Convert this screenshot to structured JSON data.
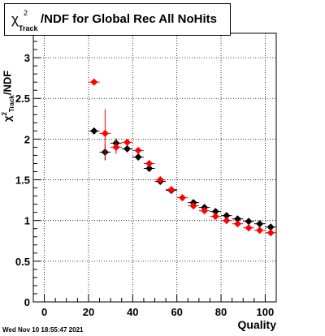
{
  "chart_data": {
    "type": "scatter",
    "title": "χ²_Track/NDF for Global Rec All NoHits",
    "title_parts": {
      "chi": "χ",
      "sup": "2",
      "sub": "Track",
      "rest": "/NDF for Global Rec All NoHits"
    },
    "xlabel": "Quality",
    "ylabel": "χ²_Track/NDF",
    "ylabel_text": "/NDF",
    "ylabel_sub": "Track",
    "ylabel_sup": "2",
    "ylabel_chi": "χ",
    "xlim": [
      -5,
      105
    ],
    "ylim": [
      0,
      3.3
    ],
    "xticks": [
      0,
      20,
      40,
      60,
      80,
      100
    ],
    "yticks": [
      0,
      0.5,
      1,
      1.5,
      2,
      2.5,
      3
    ],
    "grid": true,
    "series": [
      {
        "color": "#000000",
        "points": [
          {
            "x": 22.5,
            "y": 2.1,
            "yerr": 0.02
          },
          {
            "x": 27.5,
            "y": 1.84,
            "yerr": 0.1
          },
          {
            "x": 32.5,
            "y": 1.95,
            "yerr": 0.06
          },
          {
            "x": 37.5,
            "y": 1.88,
            "yerr": 0.03
          },
          {
            "x": 42.5,
            "y": 1.78,
            "yerr": 0.02
          },
          {
            "x": 47.5,
            "y": 1.64,
            "yerr": 0.02
          },
          {
            "x": 52.5,
            "y": 1.48,
            "yerr": 0.02
          },
          {
            "x": 57.5,
            "y": 1.37,
            "yerr": 0.015
          },
          {
            "x": 67.5,
            "y": 1.22,
            "yerr": 0.01
          },
          {
            "x": 72.5,
            "y": 1.16,
            "yerr": 0.01
          },
          {
            "x": 77.5,
            "y": 1.11,
            "yerr": 0.01
          },
          {
            "x": 82.5,
            "y": 1.06,
            "yerr": 0.01
          },
          {
            "x": 87.5,
            "y": 1.02,
            "yerr": 0.01
          },
          {
            "x": 92.5,
            "y": 0.99,
            "yerr": 0.01
          },
          {
            "x": 97.5,
            "y": 0.96,
            "yerr": 0.01
          },
          {
            "x": 102.5,
            "y": 0.92,
            "yerr": 0.01
          }
        ]
      },
      {
        "color": "#ff0000",
        "points": [
          {
            "x": 22.5,
            "y": 2.7,
            "yerr": 0.02
          },
          {
            "x": 27.5,
            "y": 2.07,
            "yerr": 0.3
          },
          {
            "x": 32.5,
            "y": 1.9,
            "yerr": 0.08
          },
          {
            "x": 37.5,
            "y": 1.96,
            "yerr": 0.03
          },
          {
            "x": 42.5,
            "y": 1.86,
            "yerr": 0.02
          },
          {
            "x": 47.5,
            "y": 1.7,
            "yerr": 0.02
          },
          {
            "x": 52.5,
            "y": 1.5,
            "yerr": 0.02
          },
          {
            "x": 57.5,
            "y": 1.38,
            "yerr": 0.015
          },
          {
            "x": 62.5,
            "y": 1.28,
            "yerr": 0.01
          },
          {
            "x": 67.5,
            "y": 1.18,
            "yerr": 0.01
          },
          {
            "x": 72.5,
            "y": 1.12,
            "yerr": 0.01
          },
          {
            "x": 77.5,
            "y": 1.05,
            "yerr": 0.01
          },
          {
            "x": 82.5,
            "y": 1.0,
            "yerr": 0.01
          },
          {
            "x": 87.5,
            "y": 0.96,
            "yerr": 0.01
          },
          {
            "x": 92.5,
            "y": 0.91,
            "yerr": 0.01
          },
          {
            "x": 97.5,
            "y": 0.88,
            "yerr": 0.01
          },
          {
            "x": 102.5,
            "y": 0.85,
            "yerr": 0.01
          }
        ]
      }
    ]
  },
  "timestamp": "Wed Nov 10 18:55:47 2021"
}
